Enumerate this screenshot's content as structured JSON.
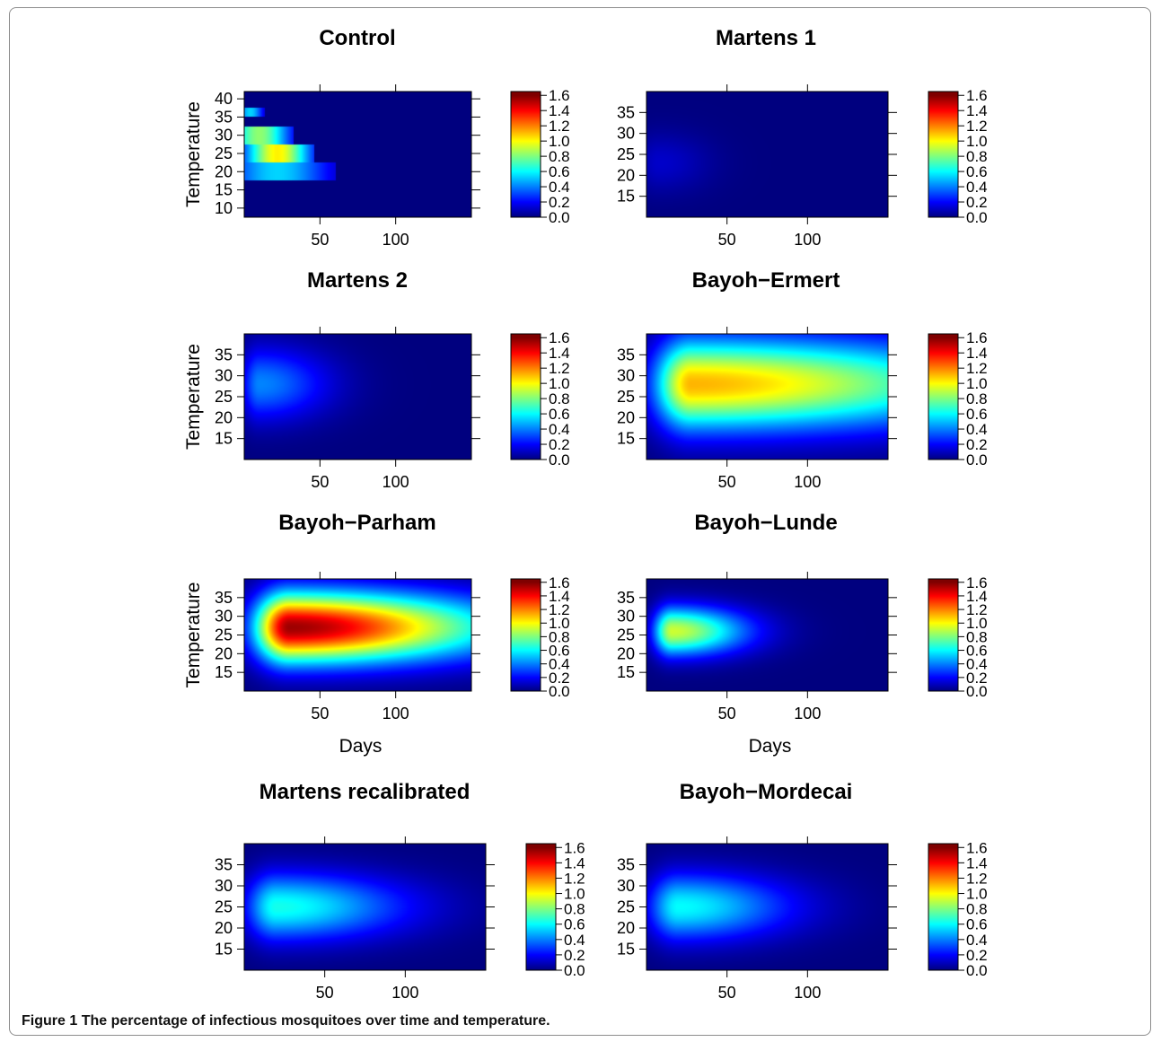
{
  "caption": {
    "label": "Figure 1",
    "text": "The percentage of infectious mosquitoes over time and temperature."
  },
  "colorbar": {
    "ticks": [
      "0.0",
      "0.2",
      "0.4",
      "0.6",
      "0.8",
      "1.0",
      "1.2",
      "1.4",
      "1.6"
    ],
    "range": [
      0,
      1.65
    ],
    "colors": [
      "#00007F",
      "#0000FF",
      "#007FFF",
      "#00FFFF",
      "#7FFF7F",
      "#FFFF00",
      "#FF7F00",
      "#FF0000",
      "#7F0000"
    ]
  },
  "chart_data": [
    {
      "type": "heatmap",
      "title": "Control",
      "xlabel": "",
      "ylabel": "Temperature",
      "x_ticks": [
        "50",
        "100"
      ],
      "y_ticks": [
        "10",
        "15",
        "20",
        "25",
        "30",
        "35",
        "40"
      ],
      "xlim": [
        0,
        150
      ],
      "ylim": [
        7.5,
        42
      ],
      "kind": "blocks",
      "blocks": [
        {
          "t_from": 35,
          "t_to": 37.5,
          "peak_day": 4,
          "peak": 0.55,
          "spread": 6
        },
        {
          "t_from": 27.5,
          "t_to": 32.5,
          "peak_day": 10,
          "peak": 0.85,
          "spread": 14
        },
        {
          "t_from": 22.5,
          "t_to": 27.5,
          "peak_day": 22,
          "peak": 1.05,
          "spread": 15
        },
        {
          "t_from": 17.5,
          "t_to": 22.5,
          "peak_day": 22,
          "peak": 0.55,
          "spread": 24
        }
      ]
    },
    {
      "type": "heatmap",
      "title": "Martens 1",
      "xlabel": "",
      "ylabel": "",
      "x_ticks": [
        "50",
        "100"
      ],
      "y_ticks": [
        "15",
        "20",
        "25",
        "30",
        "35"
      ],
      "xlim": [
        0,
        150
      ],
      "ylim": [
        10,
        40
      ],
      "kind": "blob",
      "blob": {
        "peak_day": 8,
        "peak_temp": 23,
        "peak": 0.12,
        "rise": 10,
        "decay": 22,
        "t_sigma": 5
      }
    },
    {
      "type": "heatmap",
      "title": "Martens 2",
      "xlabel": "",
      "ylabel": "Temperature",
      "x_ticks": [
        "50",
        "100"
      ],
      "y_ticks": [
        "15",
        "20",
        "25",
        "30",
        "35"
      ],
      "xlim": [
        0,
        150
      ],
      "ylim": [
        10,
        40
      ],
      "kind": "blob",
      "blob": {
        "peak_day": 10,
        "peak_temp": 28,
        "peak": 0.42,
        "rise": 8,
        "decay": 32,
        "t_sigma": 6
      }
    },
    {
      "type": "heatmap",
      "title": "Bayoh−Ermert",
      "xlabel": "",
      "ylabel": "",
      "x_ticks": [
        "50",
        "100"
      ],
      "y_ticks": [
        "15",
        "20",
        "25",
        "30",
        "35"
      ],
      "xlim": [
        0,
        150
      ],
      "ylim": [
        10,
        40
      ],
      "kind": "blob",
      "blob": {
        "peak_day": 28,
        "peak_temp": 28,
        "peak": 1.15,
        "rise": 16,
        "decay": 130,
        "t_sigma": 7.5
      }
    },
    {
      "type": "heatmap",
      "title": "Bayoh−Parham",
      "xlabel": "Days",
      "ylabel": "Temperature",
      "x_ticks": [
        "50",
        "100"
      ],
      "y_ticks": [
        "15",
        "20",
        "25",
        "30",
        "35"
      ],
      "xlim": [
        0,
        150
      ],
      "ylim": [
        10,
        40
      ],
      "kind": "blob",
      "blob": {
        "peak_day": 30,
        "peak_temp": 27,
        "peak": 1.6,
        "rise": 16,
        "decay": 90,
        "t_sigma": 6.5
      }
    },
    {
      "type": "heatmap",
      "title": "Bayoh−Lunde",
      "xlabel": "Days",
      "ylabel": "",
      "x_ticks": [
        "50",
        "100"
      ],
      "y_ticks": [
        "15",
        "20",
        "25",
        "30",
        "35"
      ],
      "xlim": [
        0,
        150
      ],
      "ylim": [
        10,
        40
      ],
      "kind": "blob",
      "blob": {
        "peak_day": 16,
        "peak_temp": 26,
        "peak": 0.95,
        "rise": 8,
        "decay": 32,
        "t_sigma": 4.5
      }
    },
    {
      "type": "heatmap",
      "title": "Martens recalibrated",
      "xlabel": "",
      "ylabel": "",
      "x_ticks": [
        "50",
        "100"
      ],
      "y_ticks": [
        "15",
        "20",
        "25",
        "30",
        "35"
      ],
      "xlim": [
        0,
        150
      ],
      "ylim": [
        10,
        40
      ],
      "kind": "blob",
      "blob": {
        "peak_day": 20,
        "peak_temp": 25,
        "peak": 0.65,
        "rise": 13,
        "decay": 55,
        "t_sigma": 5.5
      }
    },
    {
      "type": "heatmap",
      "title": "Bayoh−Mordecai",
      "xlabel": "",
      "ylabel": "",
      "x_ticks": [
        "50",
        "100"
      ],
      "y_ticks": [
        "15",
        "20",
        "25",
        "30",
        "35"
      ],
      "xlim": [
        0,
        150
      ],
      "ylim": [
        10,
        40
      ],
      "kind": "blob",
      "blob": {
        "peak_day": 20,
        "peak_temp": 25,
        "peak": 0.62,
        "rise": 13,
        "decay": 48,
        "t_sigma": 5.5
      }
    }
  ]
}
